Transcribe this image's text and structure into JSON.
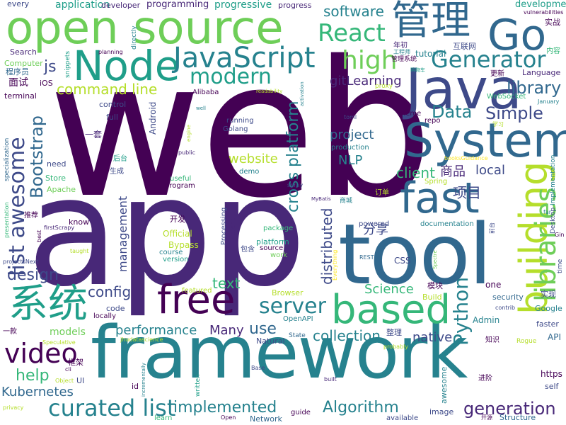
{
  "palette": {
    "dark_purple": "#440154",
    "purple": "#482878",
    "indigo": "#3e4a89",
    "blue": "#31688e",
    "teal": "#26828e",
    "green_teal": "#1f9e89",
    "green": "#35b779",
    "light_green": "#6ece58",
    "lime": "#b5de2b",
    "yellow": "#fde725"
  },
  "words": [
    {
      "text": "web",
      "color": "#440154"
    },
    {
      "text": "app",
      "color": "#482878"
    },
    {
      "text": "framework",
      "color": "#26828e"
    },
    {
      "text": "tool",
      "color": "#31688e"
    },
    {
      "text": "open source",
      "color": "#6ece58"
    },
    {
      "text": "Java",
      "color": "#3e4a89"
    },
    {
      "text": "System",
      "color": "#31688e"
    },
    {
      "text": "Node",
      "color": "#1f9e89"
    },
    {
      "text": "Go",
      "color": "#31688e"
    },
    {
      "text": "管理",
      "color": "#31688e"
    },
    {
      "text": "JavaScript",
      "color": "#26828e"
    },
    {
      "text": "fast",
      "color": "#31688e"
    },
    {
      "text": "free",
      "color": "#440154"
    },
    {
      "text": "based",
      "color": "#35b779"
    },
    {
      "text": "系统",
      "color": "#1f9e89"
    },
    {
      "text": "building",
      "color": "#b5de2b"
    },
    {
      "text": "libraries",
      "color": "#6ece58"
    },
    {
      "text": "React",
      "color": "#35b779"
    },
    {
      "text": "Generator",
      "color": "#26828e"
    },
    {
      "text": "high",
      "color": "#6ece58"
    },
    {
      "text": "modern",
      "color": "#1f9e89"
    },
    {
      "text": "curated list",
      "color": "#26828e"
    },
    {
      "text": "video",
      "color": "#440154"
    },
    {
      "text": "list awesome",
      "color": "#3e4a89"
    },
    {
      "text": "Python",
      "color": "#26828e"
    },
    {
      "text": "server",
      "color": "#26828e"
    },
    {
      "text": "cross platform",
      "color": "#26828e"
    },
    {
      "text": "Bootstrap",
      "color": "#31688e"
    },
    {
      "text": "Data",
      "color": "#26828e"
    },
    {
      "text": "Simple",
      "color": "#3e4a89"
    },
    {
      "text": "library",
      "color": "#31688e"
    },
    {
      "text": "command line",
      "color": "#b5de2b"
    },
    {
      "text": "gitLearning",
      "color": "#482878"
    },
    {
      "text": "software",
      "color": "#26828e"
    },
    {
      "text": "implemented",
      "color": "#26828e"
    },
    {
      "text": "Algorithm",
      "color": "#26828e"
    },
    {
      "text": "generation",
      "color": "#482878"
    },
    {
      "text": "performance",
      "color": "#26828e"
    },
    {
      "text": "collection",
      "color": "#26828e"
    },
    {
      "text": "help",
      "color": "#35b779"
    },
    {
      "text": "config",
      "color": "#3e4a89"
    },
    {
      "text": "project",
      "color": "#31688e"
    },
    {
      "text": "NLP",
      "color": "#26828e"
    },
    {
      "text": "client",
      "color": "#35b779"
    },
    {
      "text": "website",
      "color": "#b5de2b"
    },
    {
      "text": "商品",
      "color": "#482878"
    },
    {
      "text": "项目",
      "color": "#3e4a89"
    },
    {
      "text": "分享",
      "color": "#3e4a89"
    },
    {
      "text": "local",
      "color": "#3e4a89"
    },
    {
      "text": "distributed",
      "color": "#3e4a89"
    },
    {
      "text": "text",
      "color": "#35b779"
    },
    {
      "text": "use",
      "color": "#31688e"
    },
    {
      "text": "design",
      "color": "#3e4a89"
    },
    {
      "text": "Kubernetes",
      "color": "#31688e"
    },
    {
      "text": "Many",
      "color": "#482878"
    },
    {
      "text": "native",
      "color": "#3e4a89"
    },
    {
      "text": "Science",
      "color": "#35b779"
    },
    {
      "text": "management",
      "color": "#3e4a89"
    },
    {
      "text": "models",
      "color": "#6ece58"
    },
    {
      "text": "js",
      "color": "#3e4a89"
    },
    {
      "text": "application",
      "color": "#1f9e89"
    },
    {
      "text": "programming",
      "color": "#482878"
    },
    {
      "text": "progressive",
      "color": "#1f9e89"
    },
    {
      "text": "development",
      "color": "#1f9e89"
    },
    {
      "text": "developer",
      "color": "#482878"
    },
    {
      "text": "progress",
      "color": "#482878"
    },
    {
      "text": "every",
      "color": "#3e4a89"
    },
    {
      "text": "tutorial",
      "color": "#26828e"
    },
    {
      "text": "互联网",
      "color": "#3e4a89"
    },
    {
      "text": "Language",
      "color": "#482878"
    },
    {
      "text": "内容",
      "color": "#35b779"
    },
    {
      "text": "实战",
      "color": "#440154"
    },
    {
      "text": "vulnerabilities",
      "color": "#440154"
    },
    {
      "text": "Search",
      "color": "#482878"
    },
    {
      "text": "程序员",
      "color": "#31688e"
    },
    {
      "text": "Computer",
      "color": "#6ece58"
    },
    {
      "text": "面试",
      "color": "#440154"
    },
    {
      "text": "iOS",
      "color": "#440154"
    },
    {
      "text": "terminal",
      "color": "#440154"
    },
    {
      "text": "一套",
      "color": "#482878"
    },
    {
      "text": "Android",
      "color": "#3e4a89"
    },
    {
      "text": "Alibaba",
      "color": "#440154"
    },
    {
      "text": "control",
      "color": "#3e4a89"
    },
    {
      "text": "full",
      "color": "#3e4a89"
    },
    {
      "text": "planning",
      "color": "#440154"
    },
    {
      "text": "snippets",
      "color": "#1f9e89"
    },
    {
      "text": "directly",
      "color": "#26828e"
    },
    {
      "text": "readability",
      "color": "#b5de2b"
    },
    {
      "text": "activation",
      "color": "#26828e"
    },
    {
      "text": "toml",
      "color": "#3e4a89"
    },
    {
      "text": "theme",
      "color": "#440154"
    },
    {
      "text": "repo",
      "color": "#440154"
    },
    {
      "text": "WebSocket",
      "color": "#35b779"
    },
    {
      "text": "January",
      "color": "#26828e"
    },
    {
      "text": "学习",
      "color": "#b5de2b"
    },
    {
      "text": "更新",
      "color": "#440154"
    },
    {
      "text": "年初",
      "color": "#482878"
    },
    {
      "text": "工程师",
      "color": "#26828e"
    },
    {
      "text": "购物车",
      "color": "#1f9e89"
    },
    {
      "text": "proxy",
      "color": "#b5de2b"
    },
    {
      "text": "管理系统",
      "color": "#440154"
    },
    {
      "text": "running",
      "color": "#3e4a89"
    },
    {
      "text": "Golang",
      "color": "#3e4a89"
    },
    {
      "text": "production",
      "color": "#26828e"
    },
    {
      "text": "demo",
      "color": "#26828e"
    },
    {
      "text": "Store",
      "color": "#35b779"
    },
    {
      "text": "Apache",
      "color": "#6ece58"
    },
    {
      "text": "need",
      "color": "#3e4a89"
    },
    {
      "text": "specialization",
      "color": "#31688e"
    },
    {
      "text": "后台",
      "color": "#1f9e89"
    },
    {
      "text": "生成",
      "color": "#3e4a89"
    },
    {
      "text": "useful",
      "color": "#35b779"
    },
    {
      "text": "program",
      "color": "#440154"
    },
    {
      "text": "public",
      "color": "#482878"
    },
    {
      "text": "engine",
      "color": "#b5de2b"
    },
    {
      "text": "well",
      "color": "#26828e"
    },
    {
      "text": "spray",
      "color": "#3e4a89"
    },
    {
      "text": "Spring",
      "color": "#b5de2b"
    },
    {
      "text": "订单",
      "color": "#b5de2b"
    },
    {
      "text": "商城",
      "color": "#26828e"
    },
    {
      "text": "MyBatis",
      "color": "#482878"
    },
    {
      "text": "booksGuidance",
      "color": "#fde725"
    },
    {
      "text": "Implementation",
      "color": "#26828e"
    },
    {
      "text": "Desktop",
      "color": "#3e4a89"
    },
    {
      "text": "far",
      "color": "#26828e"
    },
    {
      "text": "Gin",
      "color": "#440154"
    },
    {
      "text": "前台",
      "color": "#3e4a89"
    },
    {
      "text": "time",
      "color": "#3e4a89"
    },
    {
      "text": "presentation",
      "color": "#35b779"
    },
    {
      "text": "推荐",
      "color": "#440154"
    },
    {
      "text": "firstScrapy",
      "color": "#482878"
    },
    {
      "text": "best",
      "color": "#440154"
    },
    {
      "text": "know",
      "color": "#440154"
    },
    {
      "text": "taught",
      "color": "#b5de2b"
    },
    {
      "text": "projectsNext",
      "color": "#3e4a89"
    },
    {
      "text": "Official",
      "color": "#b5de2b"
    },
    {
      "text": "开发",
      "color": "#440154"
    },
    {
      "text": "Bypass",
      "color": "#b5de2b"
    },
    {
      "text": "course",
      "color": "#26828e"
    },
    {
      "text": "version",
      "color": "#1f9e89"
    },
    {
      "text": "Processing",
      "color": "#3e4a89"
    },
    {
      "text": "Material",
      "color": "#482878"
    },
    {
      "text": "包含",
      "color": "#3e4a89"
    },
    {
      "text": "package",
      "color": "#35b779"
    },
    {
      "text": "platform",
      "color": "#1f9e89"
    },
    {
      "text": "source",
      "color": "#440154"
    },
    {
      "text": "work",
      "color": "#6ece58"
    },
    {
      "text": "powered",
      "color": "#3e4a89"
    },
    {
      "text": "documentation",
      "color": "#26828e"
    },
    {
      "text": "REST",
      "color": "#31688e"
    },
    {
      "text": "Spectre",
      "color": "#6ece58"
    },
    {
      "text": "Everything",
      "color": "#fde725"
    },
    {
      "text": "CSS",
      "color": "#3e4a89"
    },
    {
      "text": "Browser",
      "color": "#b5de2b"
    },
    {
      "text": "Build",
      "color": "#b5de2b"
    },
    {
      "text": "模块",
      "color": "#440154"
    },
    {
      "text": "one",
      "color": "#440154"
    },
    {
      "text": "实现",
      "color": "#3e4a89"
    },
    {
      "text": "security",
      "color": "#31688e"
    },
    {
      "text": "Google",
      "color": "#26828e"
    },
    {
      "text": "contrib",
      "color": "#3e4a89"
    },
    {
      "text": "featured",
      "color": "#b5de2b"
    },
    {
      "text": "code",
      "color": "#3e4a89"
    },
    {
      "text": "locally",
      "color": "#440154"
    },
    {
      "text": "OpenAPI",
      "color": "#26828e"
    },
    {
      "text": "Admin",
      "color": "#26828e"
    },
    {
      "text": "faster",
      "color": "#3e4a89"
    },
    {
      "text": "整理",
      "color": "#3e4a89"
    },
    {
      "text": "State",
      "color": "#31688e"
    },
    {
      "text": "Natural",
      "color": "#3e4a89"
    },
    {
      "text": "jhudatascience",
      "color": "#b5de2b"
    },
    {
      "text": "Speculative",
      "color": "#b5de2b"
    },
    {
      "text": "一款",
      "color": "#440154"
    },
    {
      "text": "probably",
      "color": "#b5de2b"
    },
    {
      "text": "知识",
      "color": "#440154"
    },
    {
      "text": "Rogue",
      "color": "#b5de2b"
    },
    {
      "text": "API",
      "color": "#31688e"
    },
    {
      "text": "框架",
      "color": "#440154"
    },
    {
      "text": "cli",
      "color": "#440154"
    },
    {
      "text": "Object",
      "color": "#b5de2b"
    },
    {
      "text": "UI",
      "color": "#3e4a89"
    },
    {
      "text": "incrementally",
      "color": "#26828e"
    },
    {
      "text": "id",
      "color": "#440154"
    },
    {
      "text": "written",
      "color": "#1f9e89"
    },
    {
      "text": "Base",
      "color": "#3e4a89"
    },
    {
      "text": "built",
      "color": "#482878"
    },
    {
      "text": "awesome",
      "color": "#26828e"
    },
    {
      "text": "进阶",
      "color": "#440154"
    },
    {
      "text": "https",
      "color": "#440154"
    },
    {
      "text": "self",
      "color": "#3e4a89"
    },
    {
      "text": "privacy",
      "color": "#b5de2b"
    },
    {
      "text": "learn",
      "color": "#35b779"
    },
    {
      "text": "Open",
      "color": "#440154"
    },
    {
      "text": "Network",
      "color": "#31688e"
    },
    {
      "text": "guide",
      "color": "#440154"
    },
    {
      "text": "image",
      "color": "#3e4a89"
    },
    {
      "text": "available",
      "color": "#3e4a89"
    },
    {
      "text": "开源",
      "color": "#440154"
    },
    {
      "text": "Structure",
      "color": "#31688e"
    }
  ]
}
